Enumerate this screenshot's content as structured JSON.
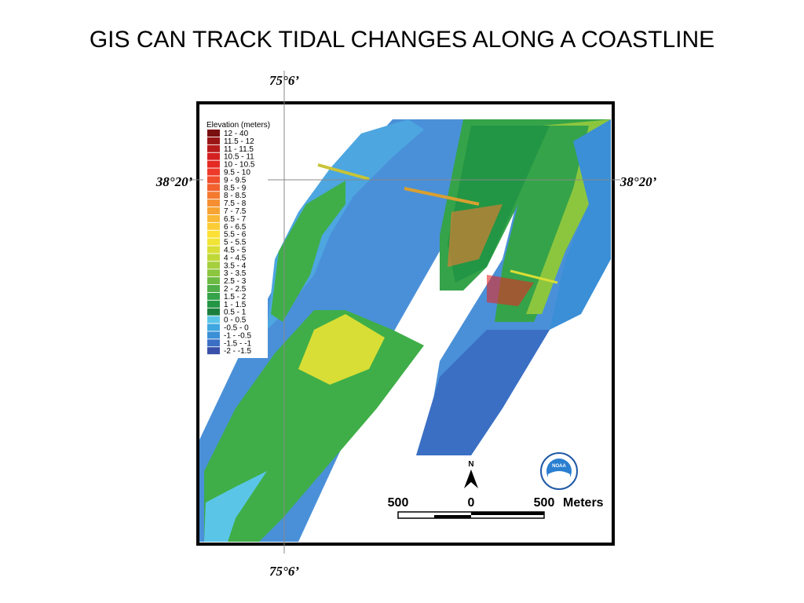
{
  "title": "GIS CAN TRACK TIDAL CHANGES ALONG A COASTLINE",
  "coordinates": {
    "lon_top": "75°6’",
    "lon_bottom": "75°6’",
    "lat_left": "38°20’",
    "lat_right": "38°20’"
  },
  "legend": {
    "title": "Elevation (meters)",
    "items": [
      {
        "label": "12 - 40",
        "color": "#7a0f0f"
      },
      {
        "label": "11.5 - 12",
        "color": "#9a1515"
      },
      {
        "label": "11 - 11.5",
        "color": "#b81b1b"
      },
      {
        "label": "10.5 - 11",
        "color": "#d42020"
      },
      {
        "label": "10 - 10.5",
        "color": "#e52a24"
      },
      {
        "label": "9.5 - 10",
        "color": "#ee3a2a"
      },
      {
        "label": "9 - 9.5",
        "color": "#f04e2c"
      },
      {
        "label": "8.5 - 9",
        "color": "#f2622e"
      },
      {
        "label": "8 - 8.5",
        "color": "#f47a30"
      },
      {
        "label": "7.5 - 8",
        "color": "#f58f32"
      },
      {
        "label": "7 - 7.5",
        "color": "#f7a434"
      },
      {
        "label": "6.5 - 7",
        "color": "#f9b835"
      },
      {
        "label": "6 - 6.5",
        "color": "#fbcc36"
      },
      {
        "label": "5.5 - 6",
        "color": "#fde036"
      },
      {
        "label": "5 - 5.5",
        "color": "#f2e436"
      },
      {
        "label": "4.5 - 5",
        "color": "#d8de36"
      },
      {
        "label": "4 - 4.5",
        "color": "#bfd838"
      },
      {
        "label": "3.5 - 4",
        "color": "#a5cf3c"
      },
      {
        "label": "3 - 3.5",
        "color": "#8cc63f"
      },
      {
        "label": "2.5 - 3",
        "color": "#6dba44"
      },
      {
        "label": "2 - 2.5",
        "color": "#4fae47"
      },
      {
        "label": "1.5 - 2",
        "color": "#35a349"
      },
      {
        "label": "1 - 1.5",
        "color": "#229645"
      },
      {
        "label": "0.5 - 1",
        "color": "#1a7f3c"
      },
      {
        "label": "0 - 0.5",
        "color": "#5bc5e8"
      },
      {
        "label": "-0.5 - 0",
        "color": "#3fa7e0"
      },
      {
        "label": "-1 - -0.5",
        "color": "#3a8fd6"
      },
      {
        "label": "-1.5 - -1",
        "color": "#3a6fc4"
      },
      {
        "label": "-2 - -1.5",
        "color": "#3850a8"
      }
    ]
  },
  "scale_bar": {
    "labels": [
      "500",
      "0",
      "500"
    ],
    "unit": "Meters"
  },
  "north": "N",
  "logo": "NOAA"
}
